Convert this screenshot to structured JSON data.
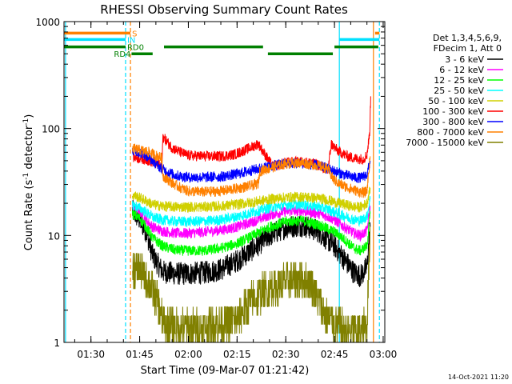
{
  "chart_data": {
    "type": "line",
    "title": "RHESSI Observing Summary Count Rates",
    "xlabel": "Start Time (09-Mar-07 01:21:42)",
    "ylabel_prefix": "Count Rate (s",
    "ylabel_exp": "-1",
    "ylabel_suffix": " detector",
    "ylabel_close": ")",
    "y_scale": "log",
    "ylim": [
      1,
      1000
    ],
    "xlim": [
      "01:21:42",
      "03:00:30"
    ],
    "x_tick_labels": [
      "01:30",
      "01:45",
      "02:00",
      "02:15",
      "02:30",
      "02:45",
      "03:00"
    ],
    "x_tick_values": [
      "01:30",
      "01:45",
      "02:00",
      "02:15",
      "02:30",
      "02:45",
      "03:00"
    ],
    "y_tick_labels": [
      "1",
      "10",
      "100",
      "1000"
    ],
    "y_tick_values": [
      1,
      10,
      100,
      1000
    ],
    "legend_header": [
      "Det 1,3,4,5,6,9,",
      "FDecim 1, Att 0"
    ],
    "legend_placement": "right",
    "series": [
      {
        "name": "3 - 6 keV",
        "color": "#000000",
        "points": [
          [
            "01:42:45",
            17
          ],
          [
            "01:45:00",
            14
          ],
          [
            "01:47:00",
            11
          ],
          [
            "01:49:00",
            6.5
          ],
          [
            "01:52:00",
            4.6
          ],
          [
            "01:56:00",
            4.4
          ],
          [
            "02:00:00",
            4.4
          ],
          [
            "02:05:00",
            4.5
          ],
          [
            "02:10:00",
            4.8
          ],
          [
            "02:15:00",
            5.8
          ],
          [
            "02:20:00",
            7.5
          ],
          [
            "02:25:00",
            10
          ],
          [
            "02:30:00",
            12
          ],
          [
            "02:35:00",
            12.5
          ],
          [
            "02:40:00",
            11
          ],
          [
            "02:43:00",
            9
          ],
          [
            "02:45:00",
            8
          ],
          [
            "02:48:00",
            6
          ],
          [
            "02:51:00",
            4.5
          ],
          [
            "02:53:00",
            4.2
          ],
          [
            "02:55:00",
            5
          ],
          [
            "02:56:00",
            12
          ]
        ]
      },
      {
        "name": "6 - 12 keV",
        "color": "#ff00ff",
        "points": [
          [
            "01:42:45",
            18.5
          ],
          [
            "01:45:00",
            16.5
          ],
          [
            "01:47:00",
            14
          ],
          [
            "01:49:00",
            12
          ],
          [
            "01:52:00",
            11
          ],
          [
            "01:56:00",
            10.5
          ],
          [
            "02:00:00",
            10.5
          ],
          [
            "02:05:00",
            10.8
          ],
          [
            "02:10:00",
            11.2
          ],
          [
            "02:15:00",
            12
          ],
          [
            "02:20:00",
            13.5
          ],
          [
            "02:25:00",
            15.5
          ],
          [
            "02:30:00",
            16.8
          ],
          [
            "02:35:00",
            17
          ],
          [
            "02:40:00",
            16
          ],
          [
            "02:43:00",
            15
          ],
          [
            "02:45:00",
            14
          ],
          [
            "02:48:00",
            12
          ],
          [
            "02:51:00",
            10.5
          ],
          [
            "02:53:00",
            10
          ],
          [
            "02:55:00",
            11
          ],
          [
            "02:56:00",
            19
          ]
        ]
      },
      {
        "name": "12 - 25 keV",
        "color": "#00ff00",
        "points": [
          [
            "01:42:45",
            16
          ],
          [
            "01:45:00",
            14.5
          ],
          [
            "01:47:00",
            12
          ],
          [
            "01:49:00",
            9.5
          ],
          [
            "01:52:00",
            8
          ],
          [
            "01:56:00",
            7.3
          ],
          [
            "02:00:00",
            7.2
          ],
          [
            "02:05:00",
            7.2
          ],
          [
            "02:10:00",
            7.6
          ],
          [
            "02:15:00",
            8.4
          ],
          [
            "02:20:00",
            10
          ],
          [
            "02:25:00",
            12
          ],
          [
            "02:30:00",
            13.5
          ],
          [
            "02:35:00",
            13.8
          ],
          [
            "02:40:00",
            12.6
          ],
          [
            "02:43:00",
            11.5
          ],
          [
            "02:45:00",
            10.8
          ],
          [
            "02:48:00",
            9.2
          ],
          [
            "02:51:00",
            7.6
          ],
          [
            "02:53:00",
            7.2
          ],
          [
            "02:55:00",
            8
          ],
          [
            "02:56:00",
            16
          ]
        ]
      },
      {
        "name": "25 - 50 keV",
        "color": "#00ffff",
        "points": [
          [
            "01:42:45",
            19.5
          ],
          [
            "01:45:00",
            18
          ],
          [
            "01:47:00",
            16.5
          ],
          [
            "01:49:00",
            14.8
          ],
          [
            "01:52:00",
            14
          ],
          [
            "01:56:00",
            13.5
          ],
          [
            "02:00:00",
            13.5
          ],
          [
            "02:05:00",
            13.6
          ],
          [
            "02:10:00",
            14
          ],
          [
            "02:15:00",
            15
          ],
          [
            "02:20:00",
            16.5
          ],
          [
            "02:25:00",
            18.2
          ],
          [
            "02:30:00",
            19.3
          ],
          [
            "02:35:00",
            19.5
          ],
          [
            "02:40:00",
            18.6
          ],
          [
            "02:43:00",
            17.5
          ],
          [
            "02:45:00",
            16.5
          ],
          [
            "02:48:00",
            15.2
          ],
          [
            "02:51:00",
            14
          ],
          [
            "02:53:00",
            13.8
          ],
          [
            "02:55:00",
            15
          ],
          [
            "02:56:00",
            22
          ]
        ]
      },
      {
        "name": "50 - 100 keV",
        "color": "#d0d000",
        "points": [
          [
            "01:42:45",
            24
          ],
          [
            "01:45:00",
            22.5
          ],
          [
            "01:47:00",
            21
          ],
          [
            "01:49:00",
            19.5
          ],
          [
            "01:52:00",
            18.8
          ],
          [
            "01:56:00",
            18.5
          ],
          [
            "02:00:00",
            18.5
          ],
          [
            "02:05:00",
            18.5
          ],
          [
            "02:10:00",
            18.8
          ],
          [
            "02:15:00",
            19.5
          ],
          [
            "02:20:00",
            20.5
          ],
          [
            "02:25:00",
            21.8
          ],
          [
            "02:30:00",
            22.7
          ],
          [
            "02:35:00",
            23
          ],
          [
            "02:40:00",
            22.3
          ],
          [
            "02:43:00",
            21.5
          ],
          [
            "02:45:00",
            20.5
          ],
          [
            "02:48:00",
            19.5
          ],
          [
            "02:51:00",
            18.5
          ],
          [
            "02:53:00",
            18.3
          ],
          [
            "02:55:00",
            20
          ],
          [
            "02:56:00",
            28
          ]
        ]
      },
      {
        "name": "100 - 300 keV",
        "color": "#ff0000",
        "points": [
          [
            "01:43:00",
            54
          ],
          [
            "01:45:00",
            53
          ],
          [
            "01:48:00",
            50
          ],
          [
            "01:50:00",
            47
          ],
          [
            "01:51:50",
            45
          ],
          [
            "01:52:10",
            84
          ],
          [
            "01:53:00",
            78
          ],
          [
            "01:55:00",
            66
          ],
          [
            "01:58:00",
            59
          ],
          [
            "02:00:00",
            56
          ],
          [
            "02:05:00",
            55
          ],
          [
            "02:10:00",
            55
          ],
          [
            "02:14:00",
            57
          ],
          [
            "02:17:00",
            62
          ],
          [
            "02:20:00",
            68
          ],
          [
            "02:21:30",
            72
          ],
          [
            "02:26:00",
            44
          ],
          [
            "02:30:00",
            48
          ],
          [
            "02:35:00",
            49
          ],
          [
            "02:40:00",
            46
          ],
          [
            "02:42:00",
            42
          ],
          [
            "02:43:00",
            40
          ],
          [
            "02:44:00",
            72
          ],
          [
            "02:46:00",
            62
          ],
          [
            "02:49:00",
            55
          ],
          [
            "02:52:00",
            52
          ],
          [
            "02:54:00",
            52
          ],
          [
            "02:55:00",
            57
          ],
          [
            "02:55:50",
            90
          ],
          [
            "02:56:10",
            200
          ]
        ]
      },
      {
        "name": "300 - 800 keV",
        "color": "#0000ff",
        "points": [
          [
            "01:42:45",
            62
          ],
          [
            "01:45:00",
            60
          ],
          [
            "01:47:00",
            56
          ],
          [
            "01:49:00",
            50
          ],
          [
            "01:51:00",
            44
          ],
          [
            "01:53:00",
            40
          ],
          [
            "01:56:00",
            36.5
          ],
          [
            "02:00:00",
            35
          ],
          [
            "02:05:00",
            35
          ],
          [
            "02:10:00",
            35.5
          ],
          [
            "02:15:00",
            37.5
          ],
          [
            "02:20:00",
            41
          ],
          [
            "02:25:00",
            44.5
          ],
          [
            "02:30:00",
            47
          ],
          [
            "02:35:00",
            47.5
          ],
          [
            "02:40:00",
            45
          ],
          [
            "02:43:00",
            42
          ],
          [
            "02:45:00",
            40
          ],
          [
            "02:48:00",
            37
          ],
          [
            "02:51:00",
            35
          ],
          [
            "02:53:00",
            34.5
          ],
          [
            "02:55:00",
            37
          ],
          [
            "02:56:00",
            50
          ]
        ]
      },
      {
        "name": "800 - 7000 keV",
        "color": "#ff8000",
        "points": [
          [
            "01:42:45",
            65
          ],
          [
            "01:45:00",
            63
          ],
          [
            "01:48:00",
            60
          ],
          [
            "01:50:00",
            56
          ],
          [
            "01:51:50",
            53
          ],
          [
            "01:52:10",
            36
          ],
          [
            "01:55:00",
            31
          ],
          [
            "01:58:00",
            27.5
          ],
          [
            "02:00:00",
            26
          ],
          [
            "02:05:00",
            25.5
          ],
          [
            "02:10:00",
            26
          ],
          [
            "02:15:00",
            27.5
          ],
          [
            "02:20:00",
            29.5
          ],
          [
            "02:21:30",
            30.5
          ],
          [
            "02:22:00",
            40
          ],
          [
            "02:26:00",
            43.5
          ],
          [
            "02:30:00",
            47
          ],
          [
            "02:35:00",
            48
          ],
          [
            "02:40:00",
            45
          ],
          [
            "02:43:00",
            42
          ],
          [
            "02:44:30",
            34
          ],
          [
            "02:46:00",
            31
          ],
          [
            "02:49:00",
            28
          ],
          [
            "02:52:00",
            26
          ],
          [
            "02:54:00",
            25
          ],
          [
            "02:55:00",
            26
          ],
          [
            "02:56:00",
            55
          ]
        ]
      },
      {
        "name": "7000 - 15000 keV",
        "color": "#808000",
        "points": [
          [
            "01:42:45",
            5
          ],
          [
            "01:45:00",
            5
          ],
          [
            "01:46:30",
            4
          ],
          [
            "01:48:00",
            3.5
          ],
          [
            "01:50:00",
            2.7
          ],
          [
            "01:52:00",
            1.6
          ],
          [
            "01:55:00",
            1.4
          ],
          [
            "02:00:00",
            1.35
          ],
          [
            "02:05:00",
            1.4
          ],
          [
            "02:10:00",
            1.5
          ],
          [
            "02:15:00",
            1.6
          ],
          [
            "02:17:00",
            2
          ],
          [
            "02:20:00",
            2.5
          ],
          [
            "02:25:00",
            3.2
          ],
          [
            "02:30:00",
            3.7
          ],
          [
            "02:35:00",
            3.9
          ],
          [
            "02:38:00",
            3.5
          ],
          [
            "02:40:00",
            2.6
          ],
          [
            "02:42:00",
            1.8
          ],
          [
            "02:45:00",
            1.5
          ],
          [
            "02:48:00",
            1.3
          ],
          [
            "02:51:00",
            1.3
          ],
          [
            "02:53:00",
            1.25
          ],
          [
            "02:55:00",
            1.5
          ],
          [
            "02:56:00",
            12
          ]
        ]
      }
    ],
    "vertical_markers": [
      {
        "time": "01:22:10",
        "color": "#00e0ff",
        "style": "solid"
      },
      {
        "time": "01:40:40",
        "color": "#00e0ff",
        "style": "dashed"
      },
      {
        "time": "01:42:10",
        "color": "#ff8000",
        "style": "dashed"
      },
      {
        "time": "02:46:30",
        "color": "#00e0ff",
        "style": "solid"
      },
      {
        "time": "02:57:00",
        "color": "#ff8000",
        "style": "solid"
      },
      {
        "time": "02:58:50",
        "color": "#00e0ff",
        "style": "dashed"
      }
    ],
    "flag_bars": [
      {
        "label": "S",
        "color": "#ff8000",
        "y": 780,
        "segments": [
          [
            "01:21:42",
            "01:42:10"
          ],
          [
            "02:57:30",
            "02:58:50"
          ]
        ]
      },
      {
        "label": "IN",
        "color": "#00e0ff",
        "y": 680,
        "segments": [
          [
            "01:21:42",
            "01:40:40"
          ],
          [
            "02:46:30",
            "02:58:50"
          ]
        ]
      },
      {
        "label": "RD0",
        "color": "#008000",
        "y": 580,
        "segments": [
          [
            "01:21:42",
            "01:40:40"
          ],
          [
            "01:52:30",
            "02:23:00"
          ],
          [
            "02:45:00",
            "02:58:30"
          ]
        ]
      },
      {
        "label": "RD4",
        "color": "#008000",
        "y": 500,
        "segments": [
          [
            "01:42:30",
            "01:49:00"
          ],
          [
            "02:24:30",
            "02:44:30"
          ]
        ]
      }
    ],
    "timestamp": "14-Oct-2021 11:20"
  }
}
